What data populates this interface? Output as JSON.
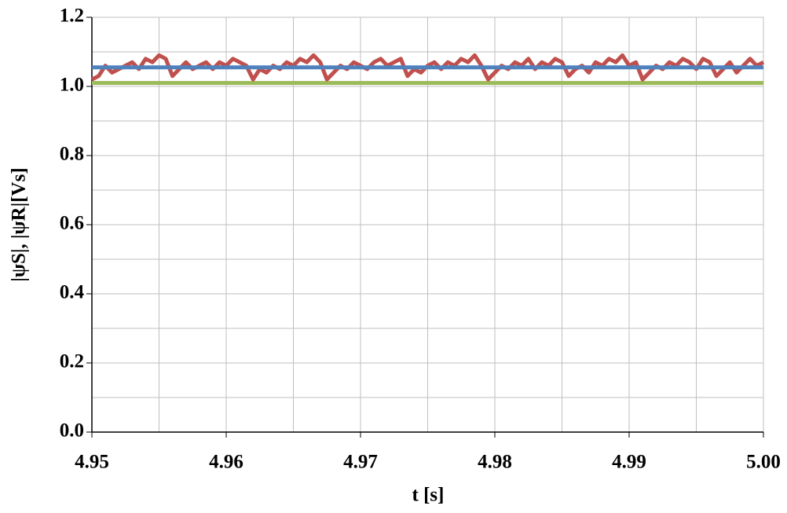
{
  "chart_data": {
    "type": "line",
    "x_label": "t [s]",
    "y_label": "|ψS|, |ψR|[Vs]",
    "xlim": [
      4.95,
      5.0
    ],
    "xticks": [
      4.95,
      4.96,
      4.97,
      4.98,
      4.99,
      {
        "value": 5.0,
        "label": "5.00"
      }
    ],
    "minor_xticks": [
      4.955,
      4.965,
      4.975,
      4.985,
      4.995
    ],
    "ylim": [
      0,
      1.2
    ],
    "yticks": [
      {
        "value": 0,
        "label": "0.0"
      },
      0.2,
      0.4,
      0.6,
      0.8,
      {
        "value": 1.0,
        "label": "1.0"
      },
      1.2
    ],
    "minor_yticks": [
      0.1,
      0.3,
      0.5,
      0.7,
      0.9,
      1.1
    ],
    "grid": true,
    "series": [
      {
        "color": "#9bbb59",
        "x": [
          4.95,
          5.0
        ],
        "values": [
          1.01,
          1.01
        ]
      },
      {
        "color": "#c0504d",
        "x": [
          4.95,
          4.9505,
          4.951,
          4.9515,
          4.952,
          4.9525,
          4.953,
          4.9535,
          4.954,
          4.9545,
          4.955,
          4.9555,
          4.956,
          4.9565,
          4.957,
          4.9575,
          4.958,
          4.9585,
          4.959,
          4.9595,
          4.96,
          4.9605,
          4.961,
          4.9615,
          4.962,
          4.9625,
          4.963,
          4.9635,
          4.964,
          4.9645,
          4.965,
          4.9655,
          4.966,
          4.9665,
          4.967,
          4.9675,
          4.968,
          4.9685,
          4.969,
          4.9695,
          4.97,
          4.9705,
          4.971,
          4.9715,
          4.972,
          4.9725,
          4.973,
          4.9735,
          4.974,
          4.9745,
          4.975,
          4.9755,
          4.976,
          4.9765,
          4.977,
          4.9775,
          4.978,
          4.9785,
          4.979,
          4.9795,
          4.98,
          4.9805,
          4.981,
          4.9815,
          4.982,
          4.9825,
          4.983,
          4.9835,
          4.984,
          4.9845,
          4.985,
          4.9855,
          4.986,
          4.9865,
          4.987,
          4.9875,
          4.988,
          4.9885,
          4.989,
          4.9895,
          4.99,
          4.9905,
          4.991,
          4.9915,
          4.992,
          4.9925,
          4.993,
          4.9935,
          4.994,
          4.9945,
          4.995,
          4.9955,
          4.996,
          4.9965,
          4.997,
          4.9975,
          4.998,
          4.9985,
          4.999,
          4.9995,
          5.0
        ],
        "values": [
          1.02,
          1.03,
          1.06,
          1.04,
          1.05,
          1.06,
          1.07,
          1.05,
          1.08,
          1.07,
          1.09,
          1.08,
          1.03,
          1.05,
          1.07,
          1.05,
          1.06,
          1.07,
          1.05,
          1.07,
          1.06,
          1.08,
          1.07,
          1.06,
          1.02,
          1.05,
          1.04,
          1.06,
          1.05,
          1.07,
          1.06,
          1.08,
          1.07,
          1.09,
          1.07,
          1.02,
          1.04,
          1.06,
          1.05,
          1.07,
          1.06,
          1.05,
          1.07,
          1.08,
          1.06,
          1.07,
          1.08,
          1.03,
          1.05,
          1.04,
          1.06,
          1.07,
          1.05,
          1.07,
          1.06,
          1.08,
          1.07,
          1.09,
          1.06,
          1.02,
          1.04,
          1.06,
          1.05,
          1.07,
          1.06,
          1.08,
          1.05,
          1.07,
          1.06,
          1.08,
          1.07,
          1.03,
          1.05,
          1.06,
          1.04,
          1.07,
          1.06,
          1.08,
          1.07,
          1.09,
          1.06,
          1.07,
          1.02,
          1.04,
          1.06,
          1.05,
          1.07,
          1.06,
          1.08,
          1.07,
          1.05,
          1.08,
          1.07,
          1.03,
          1.05,
          1.07,
          1.04,
          1.06,
          1.08,
          1.06,
          1.07
        ]
      },
      {
        "color": "#4f81bd",
        "x": [
          4.95,
          5.0
        ],
        "values": [
          1.055,
          1.055
        ]
      }
    ]
  }
}
